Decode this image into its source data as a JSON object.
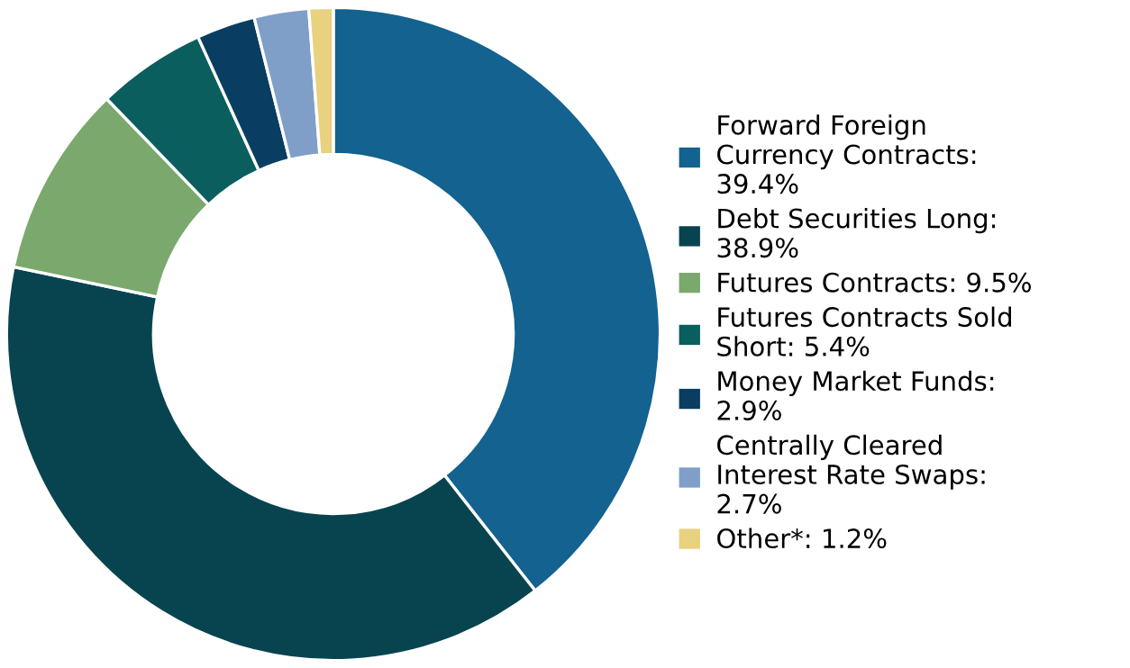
{
  "chart_data": {
    "type": "donut",
    "categories": [
      "Forward Foreign\nCurrency Contracts:\n39.4%",
      "Debt Securities Long:\n38.9%",
      "Futures Contracts: 9.5%",
      "Futures Contracts Sold\nShort: 5.4%",
      "Money Market Funds:\n2.9%",
      "Centrally Cleared\nInterest Rate Swaps:\n2.7%",
      "Other*: 1.2%"
    ],
    "values": [
      39.4,
      38.9,
      9.5,
      5.4,
      2.9,
      2.7,
      1.2
    ],
    "colors": [
      "#13628f",
      "#08444f",
      "#7ba86c",
      "#0b5e5e",
      "#093e62",
      "#809fc8",
      "#e8d17f"
    ],
    "legend": "right"
  }
}
